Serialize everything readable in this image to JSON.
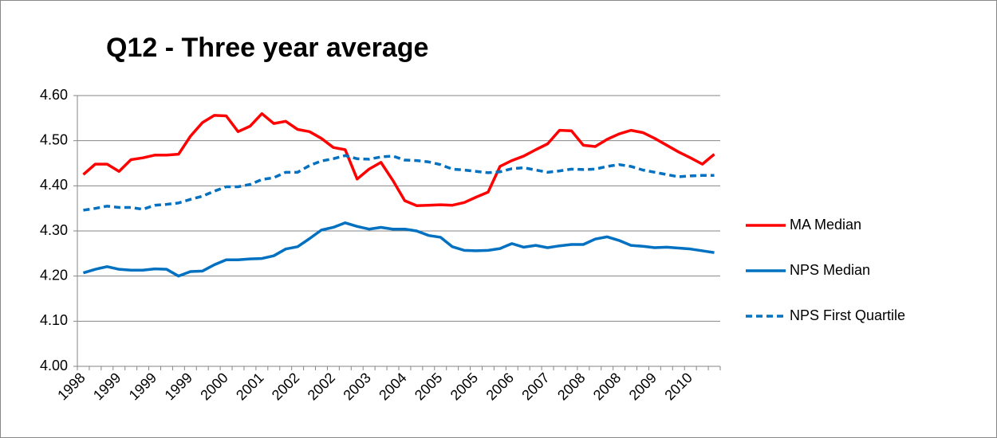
{
  "chart_data": {
    "type": "line",
    "title": "Q12 - Three year average",
    "categories": [
      "1998",
      null,
      null,
      "1999",
      null,
      null,
      "1999",
      null,
      null,
      "1999",
      null,
      null,
      "2000",
      null,
      null,
      "2001",
      null,
      null,
      "2002",
      null,
      null,
      "2002",
      null,
      null,
      "2003",
      null,
      null,
      "2004",
      null,
      null,
      "2005",
      null,
      null,
      "2005",
      null,
      null,
      "2006",
      null,
      null,
      "2007",
      null,
      null,
      "2008",
      null,
      null,
      "2008",
      null,
      null,
      "2009",
      null,
      null,
      "2010",
      null,
      null
    ],
    "series": [
      {
        "name": "MA Median",
        "color": "#ff0000",
        "dash": false,
        "values": [
          4.425,
          4.448,
          4.448,
          4.432,
          4.458,
          4.462,
          4.468,
          4.468,
          4.47,
          4.51,
          4.54,
          4.556,
          4.555,
          4.52,
          4.532,
          4.56,
          4.538,
          4.543,
          4.525,
          4.52,
          4.505,
          4.485,
          4.48,
          4.415,
          4.437,
          4.452,
          4.412,
          4.367,
          4.356,
          4.357,
          4.358,
          4.357,
          4.363,
          4.375,
          4.386,
          4.443,
          4.456,
          4.466,
          4.48,
          4.493,
          4.523,
          4.522,
          4.49,
          4.487,
          4.503,
          4.515,
          4.523,
          4.518,
          4.505,
          4.49,
          4.475,
          4.462,
          4.448,
          4.47
        ]
      },
      {
        "name": "NPS Median",
        "color": "#0070c0",
        "dash": false,
        "values": [
          4.207,
          4.215,
          4.221,
          4.215,
          4.213,
          4.213,
          4.216,
          4.215,
          4.2,
          4.21,
          4.211,
          4.225,
          4.236,
          4.236,
          4.238,
          4.239,
          4.245,
          4.26,
          4.265,
          4.283,
          4.302,
          4.308,
          4.318,
          4.31,
          4.304,
          4.308,
          4.304,
          4.304,
          4.3,
          4.29,
          4.286,
          4.265,
          4.257,
          4.256,
          4.257,
          4.261,
          4.272,
          4.264,
          4.268,
          4.263,
          4.267,
          4.27,
          4.27,
          4.282,
          4.287,
          4.279,
          4.268,
          4.266,
          4.263,
          4.264,
          4.262,
          4.26,
          4.256,
          4.252
        ]
      },
      {
        "name": "NPS First Quartile",
        "color": "#0070c0",
        "dash": true,
        "values": [
          4.346,
          4.35,
          4.355,
          4.352,
          4.352,
          4.348,
          4.357,
          4.359,
          4.362,
          4.37,
          4.377,
          4.388,
          4.398,
          4.398,
          4.403,
          4.414,
          4.418,
          4.43,
          4.43,
          4.445,
          4.455,
          4.46,
          4.467,
          4.46,
          4.459,
          4.464,
          4.466,
          4.457,
          4.456,
          4.453,
          4.447,
          4.437,
          4.435,
          4.432,
          4.429,
          4.431,
          4.438,
          4.44,
          4.435,
          4.43,
          4.433,
          4.437,
          4.436,
          4.437,
          4.443,
          4.447,
          4.443,
          4.435,
          4.43,
          4.425,
          4.42,
          4.422,
          4.423,
          4.423
        ]
      }
    ],
    "ylim": [
      4.0,
      4.6
    ],
    "yticks": [
      {
        "value": 4.0,
        "label": "4.00"
      },
      {
        "value": 4.1,
        "label": "4.10"
      },
      {
        "value": 4.2,
        "label": "4.20"
      },
      {
        "value": 4.3,
        "label": "4.30"
      },
      {
        "value": 4.4,
        "label": "4.40"
      },
      {
        "value": 4.5,
        "label": "4.50"
      },
      {
        "value": 4.6,
        "label": "4.60"
      }
    ],
    "grid": true,
    "legend": "right"
  }
}
